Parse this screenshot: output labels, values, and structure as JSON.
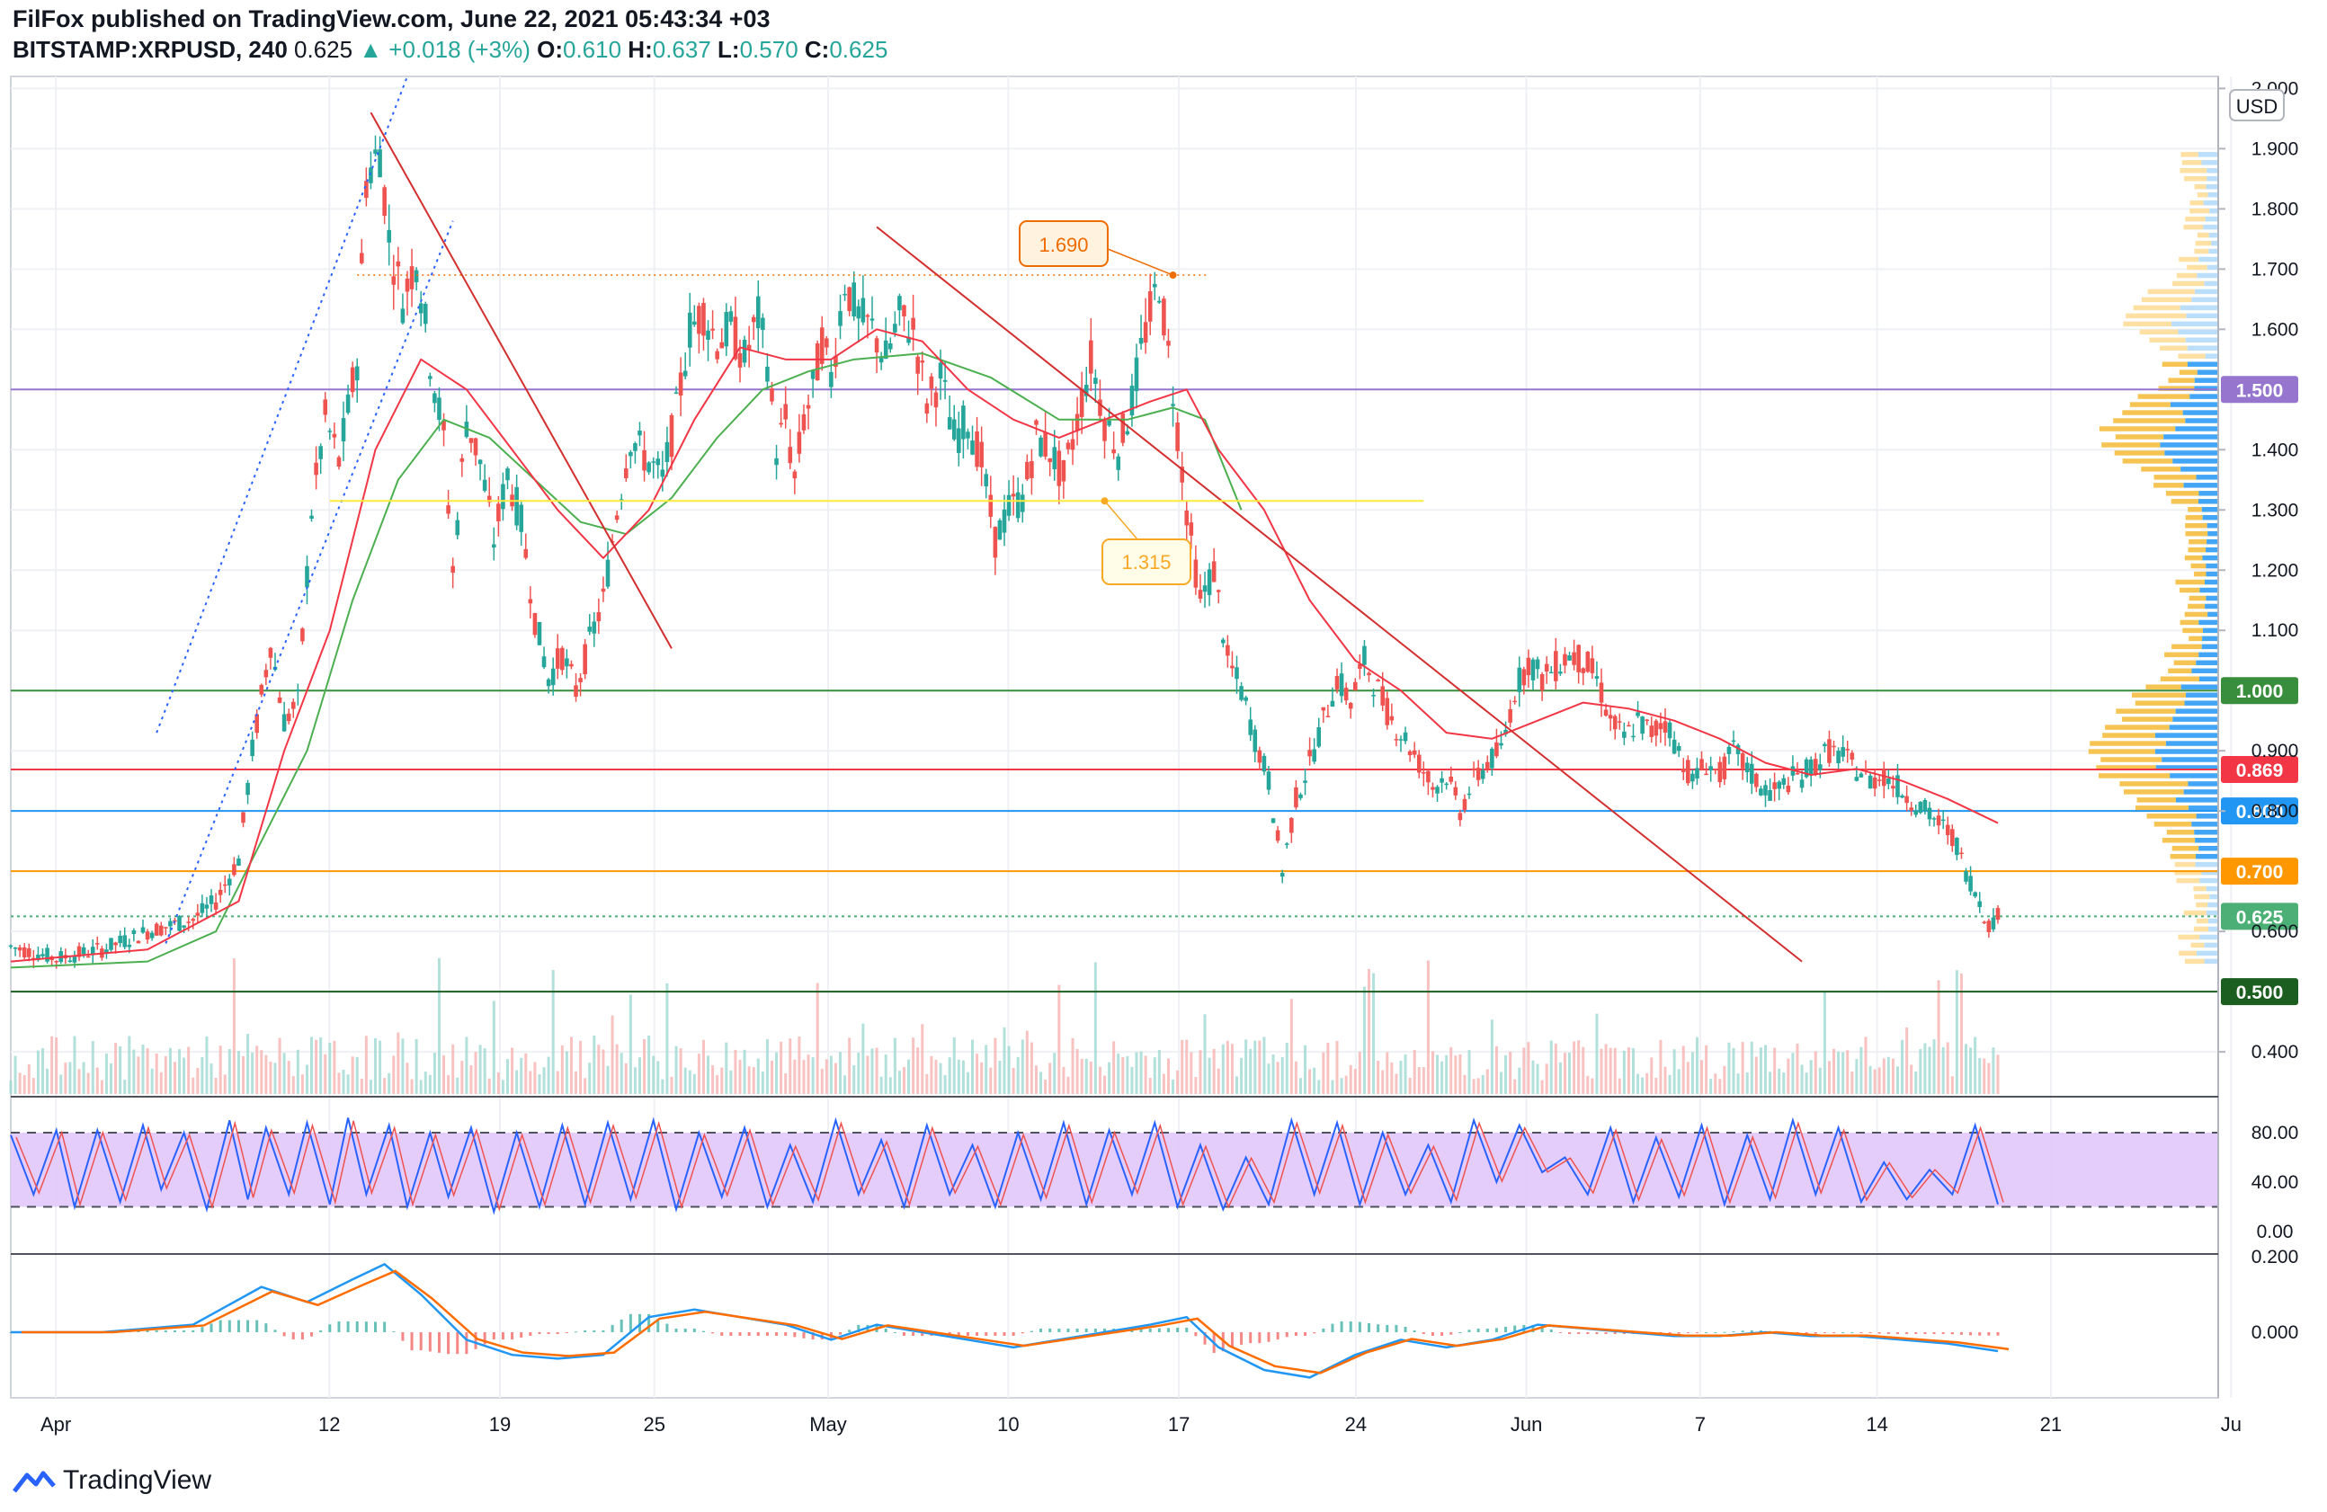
{
  "header": {
    "line1": "FilFox published on TradingView.com, June 22, 2021 05:43:34 +03",
    "symbol": "BITSTAMP:XRPUSD, 240",
    "last": "0.625",
    "change": "▲ +0.018 (+3%)",
    "ohlc_labels": {
      "o": "O:",
      "h": "H:",
      "l": "L:",
      "c": "C:"
    },
    "ohlc": {
      "o": "0.610",
      "h": "0.637",
      "l": "0.570",
      "c": "0.625"
    }
  },
  "currency": "USD",
  "footer": {
    "brand": "TradingView"
  },
  "colors": {
    "up": "#26a69a",
    "down": "#ef5350",
    "sma_short": "#f23645",
    "sma_long": "#4caf50",
    "trend": "#d32f2f",
    "channel": "#2962ff",
    "purple": "#9575cd",
    "green_line": "#388e3c",
    "red_line": "#f23645",
    "blue_line": "#2196f3",
    "orange_line": "#ff9800",
    "dark_green": "#1b5e20",
    "last_price": "#4caf76"
  },
  "chart_data": {
    "type": "candlestick",
    "y_axis": {
      "range": [
        0.33,
        2.02
      ],
      "ticks": [
        "0.400",
        "0.600",
        "0.800",
        "0.900",
        "1.100",
        "1.200",
        "1.300",
        "1.400",
        "1.600",
        "1.700",
        "1.800",
        "1.900",
        "2.000"
      ]
    },
    "x_axis": {
      "labels": [
        "Apr",
        "12",
        "19",
        "25",
        "May",
        "10",
        "17",
        "24",
        "Jun",
        "7",
        "14",
        "21",
        "Ju"
      ]
    },
    "price_path": [
      [
        0,
        0.575
      ],
      [
        10,
        0.555
      ],
      [
        20,
        0.57
      ],
      [
        30,
        0.6
      ],
      [
        40,
        0.62
      ],
      [
        45,
        0.65
      ],
      [
        50,
        0.72
      ],
      [
        53,
        0.9
      ],
      [
        57,
        1.08
      ],
      [
        60,
        0.95
      ],
      [
        63,
        0.98
      ],
      [
        66,
        1.3
      ],
      [
        69,
        1.45
      ],
      [
        72,
        1.38
      ],
      [
        76,
        1.55
      ],
      [
        78,
        1.85
      ],
      [
        81,
        1.9
      ],
      [
        83,
        1.75
      ],
      [
        86,
        1.65
      ],
      [
        89,
        1.72
      ],
      [
        92,
        1.55
      ],
      [
        95,
        1.42
      ],
      [
        97,
        1.2
      ],
      [
        100,
        1.45
      ],
      [
        103,
        1.38
      ],
      [
        106,
        1.25
      ],
      [
        109,
        1.36
      ],
      [
        112,
        1.28
      ],
      [
        115,
        1.12
      ],
      [
        118,
        1.02
      ],
      [
        121,
        1.06
      ],
      [
        124,
        1.0
      ],
      [
        127,
        1.08
      ],
      [
        130,
        1.15
      ],
      [
        133,
        1.3
      ],
      [
        136,
        1.42
      ],
      [
        140,
        1.38
      ],
      [
        143,
        1.35
      ],
      [
        146,
        1.46
      ],
      [
        149,
        1.6
      ],
      [
        152,
        1.63
      ],
      [
        155,
        1.58
      ],
      [
        158,
        1.6
      ],
      [
        161,
        1.55
      ],
      [
        164,
        1.62
      ],
      [
        166,
        1.55
      ],
      [
        168,
        1.4
      ],
      [
        170,
        1.45
      ],
      [
        172,
        1.35
      ],
      [
        174,
        1.45
      ],
      [
        176,
        1.5
      ],
      [
        178,
        1.58
      ],
      [
        180,
        1.52
      ],
      [
        183,
        1.68
      ],
      [
        186,
        1.62
      ],
      [
        189,
        1.6
      ],
      [
        192,
        1.55
      ],
      [
        195,
        1.62
      ],
      [
        198,
        1.6
      ],
      [
        201,
        1.48
      ],
      [
        204,
        1.52
      ],
      [
        207,
        1.42
      ],
      [
        210,
        1.45
      ],
      [
        213,
        1.38
      ],
      [
        216,
        1.25
      ],
      [
        219,
        1.3
      ],
      [
        222,
        1.32
      ],
      [
        225,
        1.42
      ],
      [
        228,
        1.4
      ],
      [
        231,
        1.35
      ],
      [
        234,
        1.45
      ],
      [
        237,
        1.55
      ],
      [
        240,
        1.45
      ],
      [
        243,
        1.4
      ],
      [
        246,
        1.48
      ],
      [
        249,
        1.6
      ],
      [
        252,
        1.68
      ],
      [
        255,
        1.5
      ],
      [
        258,
        1.3
      ],
      [
        261,
        1.15
      ],
      [
        264,
        1.2
      ],
      [
        267,
        1.05
      ],
      [
        270,
        1.0
      ],
      [
        273,
        0.92
      ],
      [
        276,
        0.85
      ],
      [
        279,
        0.7
      ],
      [
        282,
        0.82
      ],
      [
        285,
        0.88
      ],
      [
        288,
        0.95
      ],
      [
        291,
        1.02
      ],
      [
        294,
        0.98
      ],
      [
        297,
        1.05
      ],
      [
        300,
        1.0
      ],
      [
        303,
        0.95
      ],
      [
        306,
        0.92
      ],
      [
        309,
        0.88
      ],
      [
        312,
        0.84
      ],
      [
        315,
        0.86
      ],
      [
        318,
        0.8
      ],
      [
        321,
        0.85
      ],
      [
        324,
        0.88
      ],
      [
        327,
        0.9
      ],
      [
        330,
        1.0
      ],
      [
        333,
        1.05
      ],
      [
        336,
        1.02
      ],
      [
        339,
        1.04
      ],
      [
        342,
        1.06
      ],
      [
        345,
        1.05
      ],
      [
        348,
        1.02
      ],
      [
        351,
        0.95
      ],
      [
        354,
        0.92
      ],
      [
        357,
        0.95
      ],
      [
        360,
        0.93
      ],
      [
        363,
        0.95
      ],
      [
        366,
        0.9
      ],
      [
        369,
        0.85
      ],
      [
        372,
        0.88
      ],
      [
        375,
        0.86
      ],
      [
        378,
        0.9
      ],
      [
        381,
        0.87
      ],
      [
        384,
        0.84
      ],
      [
        387,
        0.83
      ],
      [
        390,
        0.85
      ],
      [
        393,
        0.86
      ],
      [
        396,
        0.88
      ],
      [
        399,
        0.9
      ],
      [
        402,
        0.89
      ],
      [
        405,
        0.87
      ],
      [
        408,
        0.85
      ],
      [
        411,
        0.86
      ],
      [
        414,
        0.84
      ],
      [
        417,
        0.82
      ],
      [
        420,
        0.8
      ],
      [
        423,
        0.78
      ],
      [
        426,
        0.76
      ],
      [
        429,
        0.7
      ],
      [
        432,
        0.65
      ],
      [
        434,
        0.61
      ],
      [
        436,
        0.625
      ]
    ],
    "sma_short_path": [
      [
        0,
        0.55
      ],
      [
        30,
        0.57
      ],
      [
        50,
        0.65
      ],
      [
        60,
        0.9
      ],
      [
        70,
        1.1
      ],
      [
        80,
        1.4
      ],
      [
        90,
        1.55
      ],
      [
        100,
        1.5
      ],
      [
        110,
        1.4
      ],
      [
        120,
        1.3
      ],
      [
        130,
        1.22
      ],
      [
        140,
        1.3
      ],
      [
        150,
        1.45
      ],
      [
        160,
        1.57
      ],
      [
        170,
        1.55
      ],
      [
        180,
        1.55
      ],
      [
        190,
        1.6
      ],
      [
        200,
        1.58
      ],
      [
        210,
        1.5
      ],
      [
        220,
        1.45
      ],
      [
        230,
        1.42
      ],
      [
        240,
        1.45
      ],
      [
        250,
        1.48
      ],
      [
        258,
        1.5
      ],
      [
        265,
        1.4
      ],
      [
        275,
        1.3
      ],
      [
        285,
        1.15
      ],
      [
        295,
        1.05
      ],
      [
        305,
        1.0
      ],
      [
        315,
        0.93
      ],
      [
        325,
        0.92
      ],
      [
        335,
        0.95
      ],
      [
        345,
        0.98
      ],
      [
        355,
        0.97
      ],
      [
        365,
        0.95
      ],
      [
        375,
        0.92
      ],
      [
        385,
        0.88
      ],
      [
        395,
        0.86
      ],
      [
        405,
        0.87
      ],
      [
        415,
        0.85
      ],
      [
        425,
        0.82
      ],
      [
        436,
        0.78
      ]
    ],
    "sma_long_path": [
      [
        0,
        0.54
      ],
      [
        30,
        0.55
      ],
      [
        45,
        0.6
      ],
      [
        55,
        0.75
      ],
      [
        65,
        0.9
      ],
      [
        75,
        1.15
      ],
      [
        85,
        1.35
      ],
      [
        95,
        1.45
      ],
      [
        105,
        1.42
      ],
      [
        115,
        1.35
      ],
      [
        125,
        1.28
      ],
      [
        135,
        1.26
      ],
      [
        145,
        1.32
      ],
      [
        155,
        1.42
      ],
      [
        165,
        1.5
      ],
      [
        175,
        1.53
      ],
      [
        185,
        1.55
      ],
      [
        200,
        1.56
      ],
      [
        215,
        1.52
      ],
      [
        230,
        1.45
      ],
      [
        245,
        1.45
      ],
      [
        255,
        1.47
      ],
      [
        262,
        1.45
      ],
      [
        270,
        1.3
      ]
    ],
    "rsi_path": [
      [
        0,
        78
      ],
      [
        5,
        30
      ],
      [
        10,
        82
      ],
      [
        14,
        20
      ],
      [
        19,
        82
      ],
      [
        24,
        24
      ],
      [
        29,
        86
      ],
      [
        33,
        34
      ],
      [
        38,
        80
      ],
      [
        43,
        18
      ],
      [
        48,
        90
      ],
      [
        52,
        26
      ],
      [
        56,
        84
      ],
      [
        61,
        30
      ],
      [
        65,
        88
      ],
      [
        70,
        22
      ],
      [
        74,
        92
      ],
      [
        78,
        30
      ],
      [
        83,
        86
      ],
      [
        87,
        20
      ],
      [
        92,
        80
      ],
      [
        96,
        28
      ],
      [
        101,
        84
      ],
      [
        106,
        16
      ],
      [
        111,
        80
      ],
      [
        116,
        20
      ],
      [
        121,
        86
      ],
      [
        126,
        22
      ],
      [
        131,
        88
      ],
      [
        136,
        26
      ],
      [
        141,
        90
      ],
      [
        146,
        18
      ],
      [
        151,
        80
      ],
      [
        156,
        28
      ],
      [
        161,
        84
      ],
      [
        166,
        20
      ],
      [
        171,
        70
      ],
      [
        176,
        24
      ],
      [
        181,
        90
      ],
      [
        186,
        30
      ],
      [
        191,
        74
      ],
      [
        196,
        20
      ],
      [
        201,
        86
      ],
      [
        206,
        30
      ],
      [
        211,
        70
      ],
      [
        216,
        20
      ],
      [
        221,
        80
      ],
      [
        226,
        26
      ],
      [
        231,
        88
      ],
      [
        236,
        22
      ],
      [
        241,
        82
      ],
      [
        246,
        30
      ],
      [
        251,
        88
      ],
      [
        256,
        20
      ],
      [
        261,
        70
      ],
      [
        266,
        18
      ],
      [
        271,
        60
      ],
      [
        276,
        22
      ],
      [
        281,
        90
      ],
      [
        286,
        30
      ],
      [
        291,
        88
      ],
      [
        296,
        22
      ],
      [
        301,
        80
      ],
      [
        306,
        30
      ],
      [
        311,
        70
      ],
      [
        316,
        24
      ],
      [
        321,
        90
      ],
      [
        326,
        40
      ],
      [
        331,
        86
      ],
      [
        336,
        48
      ],
      [
        341,
        60
      ],
      [
        346,
        30
      ],
      [
        351,
        84
      ],
      [
        356,
        24
      ],
      [
        361,
        76
      ],
      [
        366,
        28
      ],
      [
        371,
        86
      ],
      [
        376,
        22
      ],
      [
        381,
        78
      ],
      [
        386,
        26
      ],
      [
        391,
        90
      ],
      [
        396,
        30
      ],
      [
        401,
        84
      ],
      [
        406,
        24
      ],
      [
        411,
        56
      ],
      [
        416,
        26
      ],
      [
        421,
        50
      ],
      [
        426,
        30
      ],
      [
        431,
        86
      ],
      [
        436,
        22
      ]
    ],
    "macd_path": [
      [
        0,
        0.0
      ],
      [
        20,
        0.0
      ],
      [
        40,
        0.02
      ],
      [
        55,
        0.12
      ],
      [
        65,
        0.08
      ],
      [
        75,
        0.14
      ],
      [
        82,
        0.18
      ],
      [
        90,
        0.1
      ],
      [
        100,
        -0.02
      ],
      [
        110,
        -0.06
      ],
      [
        120,
        -0.07
      ],
      [
        130,
        -0.06
      ],
      [
        140,
        0.04
      ],
      [
        150,
        0.06
      ],
      [
        160,
        0.04
      ],
      [
        170,
        0.02
      ],
      [
        180,
        -0.02
      ],
      [
        190,
        0.02
      ],
      [
        200,
        0.0
      ],
      [
        210,
        -0.02
      ],
      [
        220,
        -0.04
      ],
      [
        230,
        -0.02
      ],
      [
        240,
        0.0
      ],
      [
        250,
        0.02
      ],
      [
        258,
        0.04
      ],
      [
        265,
        -0.04
      ],
      [
        275,
        -0.1
      ],
      [
        285,
        -0.12
      ],
      [
        295,
        -0.06
      ],
      [
        305,
        -0.02
      ],
      [
        315,
        -0.04
      ],
      [
        325,
        -0.02
      ],
      [
        335,
        0.02
      ],
      [
        345,
        0.01
      ],
      [
        355,
        0.0
      ],
      [
        365,
        -0.01
      ],
      [
        375,
        -0.01
      ],
      [
        385,
        0.0
      ],
      [
        395,
        -0.01
      ],
      [
        405,
        -0.01
      ],
      [
        415,
        -0.02
      ],
      [
        425,
        -0.03
      ],
      [
        436,
        -0.05
      ]
    ],
    "levels": [
      {
        "value": 1.5,
        "label": "1.500",
        "color": "#9575cd"
      },
      {
        "value": 1.0,
        "label": "1.000",
        "color": "#388e3c"
      },
      {
        "value": 0.869,
        "label": "0.869",
        "color": "#f23645"
      },
      {
        "value": 0.8,
        "label": "0.800",
        "color": "#2196f3"
      },
      {
        "value": 0.7,
        "label": "0.700",
        "color": "#ff9800"
      },
      {
        "value": 0.625,
        "label": "0.625",
        "color": "#4caf76"
      },
      {
        "value": 0.5,
        "label": "0.500",
        "color": "#1b5e20"
      }
    ],
    "callouts": [
      {
        "label": "1.690",
        "value": 1.69,
        "color": "#ef6c00"
      },
      {
        "label": "1.315",
        "value": 1.315,
        "color": "#f9a825"
      }
    ],
    "rsi_axis": {
      "ticks": [
        "80.00",
        "40.00",
        "0.00"
      ]
    },
    "macd_axis": {
      "ticks": [
        "0.200",
        "0.000"
      ]
    }
  }
}
